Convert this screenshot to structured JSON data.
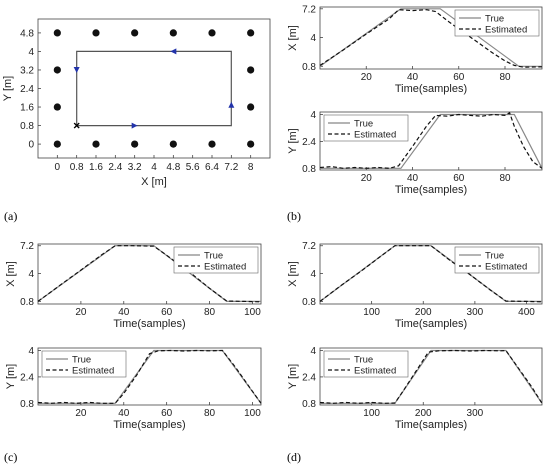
{
  "panels": {
    "a": "(a)",
    "b": "(b)",
    "c": "(c)",
    "d": "(d)"
  },
  "chart_data": [
    {
      "id": "a",
      "type": "scatter",
      "xlabel": "X [m]",
      "ylabel": "Y [m]",
      "xlim": [
        -0.8,
        8.8
      ],
      "ylim": [
        -0.6,
        5.4
      ],
      "xticks": [
        0,
        0.8,
        1.6,
        2.4,
        3.2,
        4,
        4.8,
        5.6,
        6.4,
        7.2,
        8
      ],
      "xticklabels": [
        "0",
        "0.8",
        "1.6",
        "2.4",
        "3.2",
        "4",
        "4.8",
        "5.6",
        "6.4",
        "7.2",
        "8"
      ],
      "yticks": [
        0,
        0.8,
        1.6,
        2.4,
        3.2,
        4,
        4.8
      ],
      "yticklabels": [
        "0",
        "0.8",
        "1.6",
        "2.4",
        "3.2",
        "4",
        "4.8"
      ],
      "anchors": [
        {
          "x": 0,
          "y": 4.8
        },
        {
          "x": 1.6,
          "y": 4.8
        },
        {
          "x": 3.2,
          "y": 4.8
        },
        {
          "x": 4.8,
          "y": 4.8
        },
        {
          "x": 6.4,
          "y": 4.8
        },
        {
          "x": 8,
          "y": 4.8
        },
        {
          "x": 0,
          "y": 3.2
        },
        {
          "x": 8,
          "y": 3.2
        },
        {
          "x": 0,
          "y": 1.6
        },
        {
          "x": 8,
          "y": 1.6
        },
        {
          "x": 0,
          "y": 0
        },
        {
          "x": 1.6,
          "y": 0
        },
        {
          "x": 3.2,
          "y": 0
        },
        {
          "x": 4.8,
          "y": 0
        },
        {
          "x": 6.4,
          "y": 0
        },
        {
          "x": 8,
          "y": 0
        }
      ],
      "path": [
        [
          0.8,
          0.8
        ],
        [
          7.2,
          0.8
        ],
        [
          7.2,
          4
        ],
        [
          0.8,
          4
        ],
        [
          0.8,
          0.8
        ]
      ],
      "start": [
        0.8,
        0.8
      ],
      "arrows": [
        {
          "x": 3.2,
          "y": 0.8,
          "dir": "right"
        },
        {
          "x": 7.2,
          "y": 1.7,
          "dir": "up"
        },
        {
          "x": 4.8,
          "y": 4,
          "dir": "left"
        },
        {
          "x": 0.8,
          "y": 3.2,
          "dir": "down"
        }
      ],
      "colors": {
        "path": "#555555",
        "anchor": "#111111",
        "arrow": "#2233aa"
      }
    },
    {
      "id": "b-x",
      "type": "line",
      "xlabel": "Time(samples)",
      "ylabel": "X [m]",
      "xlim": [
        0,
        96
      ],
      "ylim": [
        0.5,
        7.4
      ],
      "xticks": [
        20,
        40,
        60,
        80
      ],
      "yticks": [
        0.8,
        4,
        7.2
      ],
      "legend": "top-right",
      "series": [
        {
          "name": "True",
          "style": "solid",
          "x": [
            0,
            35,
            52,
            86,
            96
          ],
          "y": [
            0.8,
            7.2,
            7.2,
            0.8,
            0.8
          ]
        },
        {
          "name": "Estimated",
          "style": "dashed",
          "x": [
            0,
            10,
            20,
            30,
            34,
            40,
            46,
            50,
            56,
            62,
            68,
            74,
            80,
            84,
            88,
            96
          ],
          "y": [
            0.9,
            2.6,
            4.4,
            6.1,
            7.1,
            7.0,
            7.1,
            6.9,
            5.7,
            4.6,
            3.5,
            2.4,
            1.4,
            0.9,
            0.7,
            0.75
          ]
        }
      ]
    },
    {
      "id": "b-y",
      "type": "line",
      "xlabel": "Time(samples)",
      "ylabel": "Y [m]",
      "xlim": [
        0,
        96
      ],
      "ylim": [
        0.7,
        4.15
      ],
      "xticks": [
        20,
        40,
        60,
        80
      ],
      "yticks": [
        0.8,
        2.4,
        4
      ],
      "legend": "top-left",
      "series": [
        {
          "name": "True",
          "style": "solid",
          "x": [
            0,
            35,
            52,
            84,
            96
          ],
          "y": [
            0.8,
            0.8,
            4,
            4,
            0.8
          ]
        },
        {
          "name": "Estimated",
          "style": "dashed",
          "x": [
            0,
            5,
            10,
            15,
            20,
            25,
            30,
            34,
            40,
            46,
            50,
            55,
            60,
            65,
            70,
            75,
            80,
            82,
            84,
            88,
            92,
            96
          ],
          "y": [
            0.85,
            0.9,
            0.8,
            0.85,
            0.8,
            0.85,
            0.8,
            0.95,
            2.1,
            3.3,
            3.95,
            3.9,
            4.0,
            3.95,
            3.9,
            4.0,
            3.95,
            4.1,
            3.3,
            2.1,
            1.2,
            0.8
          ]
        }
      ]
    },
    {
      "id": "c-x",
      "type": "line",
      "xlabel": "Time(samples)",
      "ylabel": "X [m]",
      "xlim": [
        0,
        104
      ],
      "ylim": [
        0.5,
        7.4
      ],
      "xticks": [
        20,
        40,
        60,
        80,
        100
      ],
      "yticks": [
        0.8,
        4,
        7.2
      ],
      "legend": "top-right",
      "series": [
        {
          "name": "True",
          "style": "solid",
          "x": [
            0,
            36,
            54,
            88,
            104
          ],
          "y": [
            0.8,
            7.2,
            7.2,
            0.8,
            0.8
          ]
        },
        {
          "name": "Estimated",
          "style": "dashed",
          "x": [
            0,
            10,
            20,
            30,
            36,
            44,
            54,
            60,
            66,
            72,
            80,
            88,
            96,
            104
          ],
          "y": [
            0.8,
            2.6,
            4.4,
            6.2,
            7.2,
            7.2,
            7.15,
            6.1,
            5.0,
            3.9,
            2.3,
            0.85,
            0.8,
            0.75
          ]
        }
      ]
    },
    {
      "id": "c-y",
      "type": "line",
      "xlabel": "Time(samples)",
      "ylabel": "Y [m]",
      "xlim": [
        0,
        104
      ],
      "ylim": [
        0.7,
        4.15
      ],
      "xticks": [
        20,
        40,
        60,
        80,
        100
      ],
      "yticks": [
        0.8,
        2.4,
        4
      ],
      "legend": "top-left",
      "series": [
        {
          "name": "True",
          "style": "solid",
          "x": [
            0,
            36,
            54,
            86,
            104
          ],
          "y": [
            0.8,
            0.8,
            4,
            4,
            0.8
          ]
        },
        {
          "name": "Estimated",
          "style": "dashed",
          "x": [
            0,
            6,
            12,
            18,
            24,
            30,
            36,
            40,
            46,
            52,
            56,
            62,
            68,
            74,
            80,
            86,
            92,
            98,
            104
          ],
          "y": [
            0.85,
            0.8,
            0.85,
            0.8,
            0.85,
            0.8,
            0.8,
            1.4,
            2.5,
            3.8,
            3.98,
            4.0,
            3.97,
            4.0,
            3.98,
            4.0,
            3.0,
            1.9,
            0.8
          ]
        }
      ]
    },
    {
      "id": "d-x",
      "type": "line",
      "xlabel": "Time(samples)",
      "ylabel": "X [m]",
      "xlim": [
        0,
        430
      ],
      "ylim": [
        0.5,
        7.4
      ],
      "xticks": [
        100,
        200,
        300,
        400
      ],
      "yticks": [
        0.8,
        4,
        7.2
      ],
      "legend": "top-right",
      "series": [
        {
          "name": "True",
          "style": "solid",
          "x": [
            0,
            145,
            215,
            360,
            430
          ],
          "y": [
            0.8,
            7.2,
            7.2,
            0.8,
            0.8
          ]
        },
        {
          "name": "Estimated",
          "style": "dashed",
          "x": [
            0,
            40,
            80,
            120,
            145,
            180,
            215,
            250,
            290,
            330,
            360,
            400,
            430
          ],
          "y": [
            0.8,
            2.6,
            4.3,
            6.1,
            7.2,
            7.2,
            7.2,
            5.6,
            3.9,
            2.1,
            0.85,
            0.8,
            0.75
          ]
        }
      ]
    },
    {
      "id": "d-y",
      "type": "line",
      "xlabel": "Time(samples)",
      "ylabel": "Y [m]",
      "xlim": [
        0,
        430
      ],
      "ylim": [
        0.7,
        4.15
      ],
      "xticks": [
        100,
        200,
        300
      ],
      "yticks": [
        0.8,
        2.4,
        4
      ],
      "legend": "top-left",
      "series": [
        {
          "name": "True",
          "style": "solid",
          "x": [
            0,
            145,
            215,
            360,
            430
          ],
          "y": [
            0.8,
            0.8,
            4,
            4,
            0.8
          ]
        },
        {
          "name": "Estimated",
          "style": "dashed",
          "x": [
            0,
            25,
            50,
            75,
            100,
            125,
            145,
            160,
            185,
            210,
            230,
            260,
            290,
            320,
            350,
            360,
            385,
            410,
            430
          ],
          "y": [
            0.85,
            0.8,
            0.85,
            0.8,
            0.85,
            0.8,
            0.82,
            1.5,
            2.7,
            3.9,
            3.98,
            4.0,
            3.97,
            4.0,
            3.98,
            4.0,
            2.9,
            1.8,
            0.8
          ]
        }
      ]
    }
  ]
}
